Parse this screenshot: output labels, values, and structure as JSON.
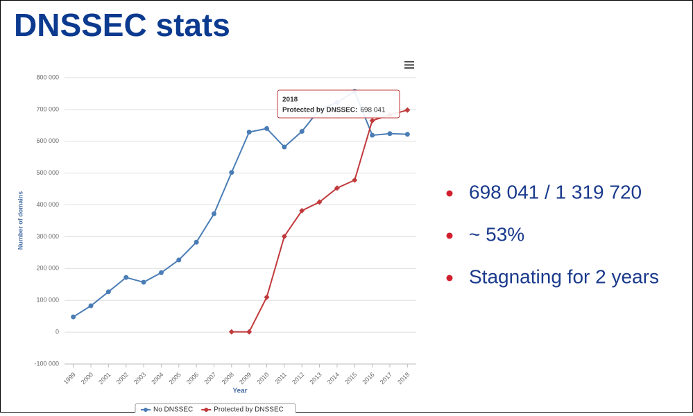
{
  "title": "DNSSEC stats",
  "bullets": [
    "698 041 / 1 319 720",
    "~ 53%",
    "Stagnating for 2 years"
  ],
  "chart_data": {
    "type": "line",
    "x_label": "Year",
    "y_label": "Number of domains",
    "categories": [
      "1999",
      "2000",
      "2001",
      "2002",
      "2003",
      "2004",
      "2005",
      "2006",
      "2007",
      "2008",
      "2009",
      "2010",
      "2011",
      "2012",
      "2013",
      "2014",
      "2015",
      "2016",
      "2017",
      "2018"
    ],
    "series": [
      {
        "name": "No DNSSEC",
        "color": "#4a7db5",
        "marker": "circle",
        "values": [
          48000,
          83000,
          127000,
          172000,
          157000,
          187000,
          227000,
          283000,
          372000,
          502000,
          629000,
          640000,
          582000,
          631000,
          700000,
          722000,
          757000,
          619000,
          624000,
          622000
        ]
      },
      {
        "name": "Protected by DNSSEC",
        "color": "#c0393b",
        "marker": "diamond",
        "values": [
          null,
          null,
          null,
          null,
          null,
          null,
          null,
          null,
          null,
          1000,
          1000,
          110000,
          301000,
          382000,
          409000,
          453000,
          478000,
          665000,
          683000,
          698041
        ]
      }
    ],
    "ylim": [
      -100000,
      800000
    ],
    "yticks": [
      {
        "value": -100000,
        "label": "-100 000"
      },
      0,
      {
        "value": 100000,
        "label": "100 000"
      },
      {
        "value": 200000,
        "label": "200 000"
      },
      {
        "value": 300000,
        "label": "300 000"
      },
      {
        "value": 400000,
        "label": "400 000"
      },
      {
        "value": 500000,
        "label": "500 000"
      },
      {
        "value": 600000,
        "label": "600 000"
      },
      {
        "value": 700000,
        "label": "700 000"
      },
      {
        "value": 800000,
        "label": "800 000"
      }
    ],
    "grid": true,
    "legend": "bottom",
    "tooltip": {
      "series_label": "Protected by DNSSEC:",
      "value_label": "698 041"
    }
  }
}
